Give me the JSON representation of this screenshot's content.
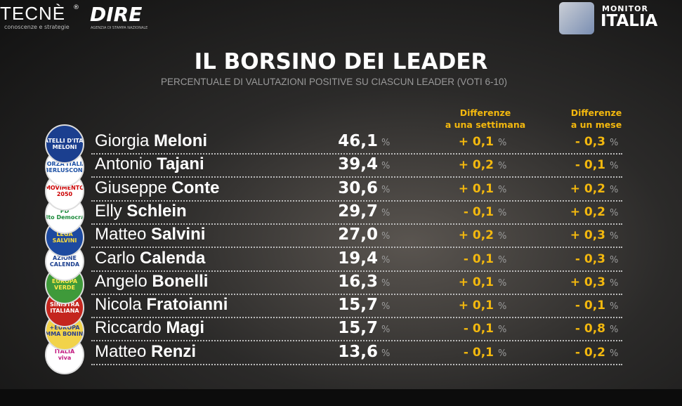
{
  "header": {
    "tecne": "TECNÈ",
    "tecne_reg": "®",
    "tecne_sub": "conoscenze e strategie",
    "dire": "DIRE",
    "dire_sub": "AGENZIA DI STAMPA NAZIONALE",
    "monitor": "MONITOR",
    "italia": "ITALIA"
  },
  "title": "IL BORSINO DEI LEADER",
  "subtitle": "PERCENTUALE DI VALUTAZIONI POSITIVE SU CIASCUN LEADER (VOTI 6-10)",
  "columns": {
    "week": [
      "Differenze",
      "a una settimana"
    ],
    "month": [
      "Differenze",
      "a un mese"
    ]
  },
  "unit": "%",
  "rows": [
    {
      "first": "Giorgia",
      "last": "Meloni",
      "value": "46,1",
      "week": "+ 0,1",
      "month": "- 0,3",
      "logo": [
        "FRATELLI D'ITALIA",
        "MELONI"
      ]
    },
    {
      "first": "Antonio",
      "last": "Tajani",
      "value": "39,4",
      "week": "+ 0,2",
      "month": "- 0,1",
      "logo": [
        "FORZA ITALIA",
        "BERLUSCONI"
      ]
    },
    {
      "first": "Giuseppe",
      "last": "Conte",
      "value": "30,6",
      "week": "+ 0,1",
      "month": "+ 0,2",
      "logo": [
        "MOVIMENTO",
        "2050"
      ]
    },
    {
      "first": "Elly",
      "last": "Schlein",
      "value": "29,7",
      "week": "- 0,1",
      "month": "+ 0,2",
      "logo": [
        "PD",
        "Partito Democratico"
      ]
    },
    {
      "first": "Matteo",
      "last": "Salvini",
      "value": "27,0",
      "week": "+ 0,2",
      "month": "+ 0,3",
      "logo": [
        "LEGA",
        "SALVINI"
      ]
    },
    {
      "first": "Carlo",
      "last": "Calenda",
      "value": "19,4",
      "week": "- 0,1",
      "month": "- 0,3",
      "logo": [
        "AZIONE",
        "CALENDA"
      ]
    },
    {
      "first": "Angelo",
      "last": "Bonelli",
      "value": "16,3",
      "week": "+ 0,1",
      "month": "+ 0,3",
      "logo": [
        "EUROPA",
        "VERDE"
      ]
    },
    {
      "first": "Nicola",
      "last": "Fratoianni",
      "value": "15,7",
      "week": "+ 0,1",
      "month": "- 0,1",
      "logo": [
        "SINISTRA",
        "ITALIANA"
      ]
    },
    {
      "first": "Riccardo",
      "last": "Magi",
      "value": "15,7",
      "week": "- 0,1",
      "month": "- 0,8",
      "logo": [
        "+EUROPA",
        "EMMA BONINO"
      ]
    },
    {
      "first": "Matteo",
      "last": "Renzi",
      "value": "13,6",
      "week": "- 0,1",
      "month": "- 0,2",
      "logo": [
        "ITALIA",
        "viva"
      ]
    }
  ]
}
